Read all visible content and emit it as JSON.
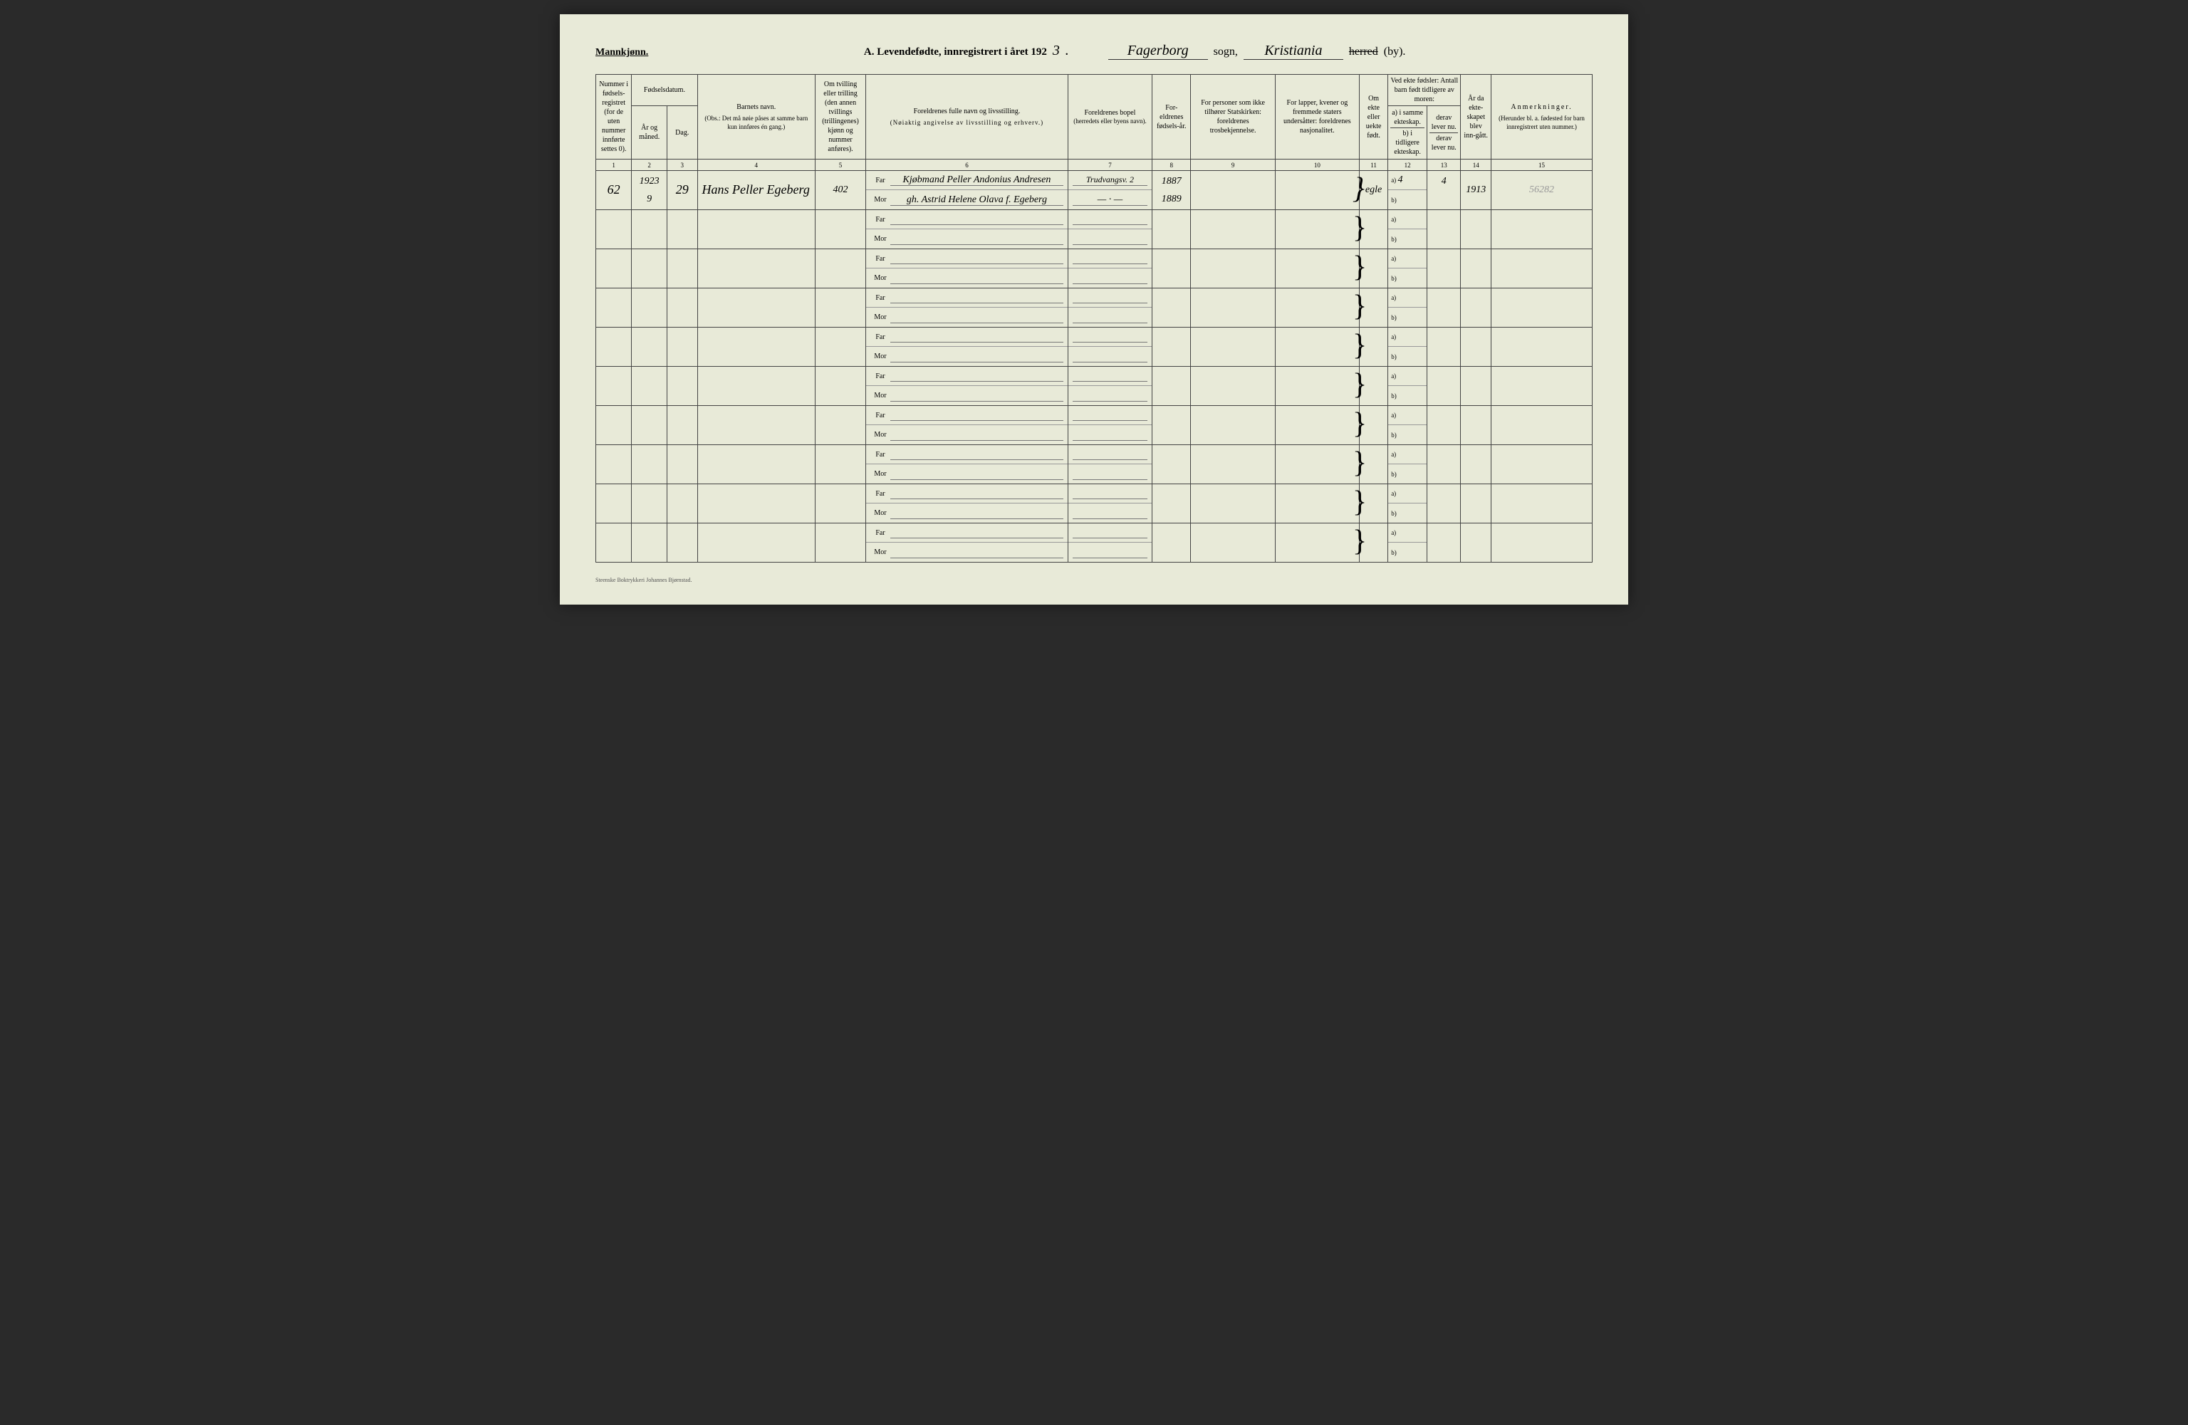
{
  "header": {
    "gender": "Mannkjønn.",
    "title_prefix": "A.  Levendefødte, innregistrert i året 192",
    "year_digit": "3",
    "sogn_value": "Fagerborg",
    "sogn_label": "sogn,",
    "herred_value": "Kristiania",
    "herred_crossed": "herred",
    "by_label": "(by)."
  },
  "columns": {
    "c1": "Nummer i fødsels-registret (for de uten nummer innførte settes 0).",
    "c23_top": "Fødselsdatum.",
    "c2": "År og måned.",
    "c3": "Dag.",
    "c4_top": "Barnets navn.",
    "c4_note": "(Obs.: Det må nøie påses at samme barn kun innføres én gang.)",
    "c5": "Om tvilling eller trilling (den annen tvillings (trillingenes) kjønn og nummer anføres).",
    "c6_top": "Foreldrenes fulle navn og livsstilling.",
    "c6_note": "(Nøiaktig angivelse av livsstilling og erhverv.)",
    "c7_top": "Foreldrenes bopel",
    "c7_note": "(herredets eller byens navn).",
    "c8": "For-eldrenes fødsels-år.",
    "c9": "For personer som ikke tilhører Statskirken: foreldrenes trosbekjennelse.",
    "c10": "For lapper, kvener og fremmede staters undersåtter: foreldrenes nasjonalitet.",
    "c11": "Om ekte eller uekte født.",
    "c1213_top": "Ved ekte fødsler: Antall barn født tidligere av moren:",
    "c12a": "a) i samme ekteskap.",
    "c12b": "b) i tidligere ekteskap.",
    "c13a": "derav lever nu.",
    "c13b": "derav lever nu.",
    "c14": "År da ekte-skapet blev inn-gått.",
    "c15_top": "Anmerkninger.",
    "c15_note": "(Herunder bl. a. fødested for barn innregistrert uten nummer.)",
    "far": "Far",
    "mor": "Mor"
  },
  "colnums": [
    "1",
    "2",
    "3",
    "4",
    "5",
    "6",
    "7",
    "8",
    "9",
    "10",
    "11",
    "12",
    "13",
    "14",
    "15"
  ],
  "row1": {
    "num": "62",
    "year": "1923",
    "month": "9",
    "day": "29",
    "name": "Hans Peller Egeberg",
    "twin": "402",
    "far_name": "Kjøbmand Peller Andonius Andresen",
    "mor_name": "gh. Astrid Helene Olava f. Egeberg",
    "far_bopel": "Trudvangsv. 2",
    "mor_bopel": "— · —",
    "far_year": "1887",
    "mor_year": "1889",
    "ekte": "egle",
    "c12a": "4",
    "c13a": "4",
    "c14": "1913",
    "note": "56282"
  },
  "footer": "Steenske Boktrykkeri Johannes Bjørnstad."
}
